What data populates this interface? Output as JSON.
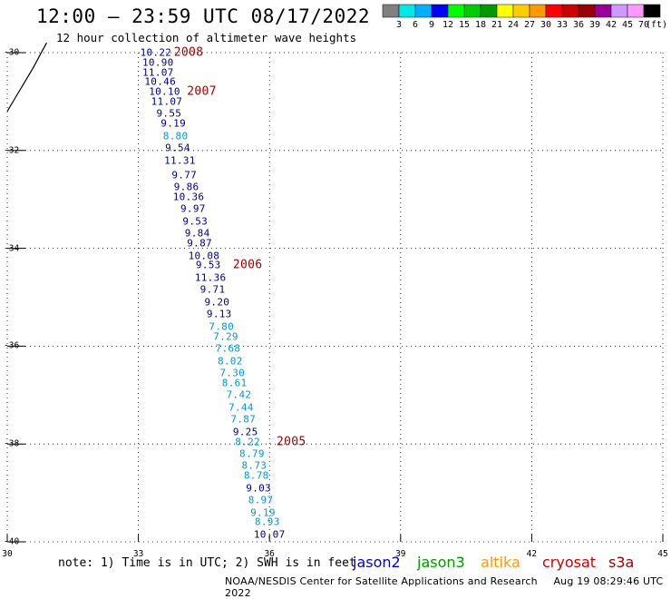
{
  "title": "12:00 – 23:59 UTC 08/17/2022",
  "subtitle": "12 hour collection of altimeter wave heights",
  "colorbar": {
    "colors": [
      "#808080",
      "#00e8e8",
      "#00b0ff",
      "#0000ff",
      "#00ff00",
      "#00cc00",
      "#009900",
      "#ffff00",
      "#ffcc00",
      "#ff9900",
      "#ff0000",
      "#cc0000",
      "#990000",
      "#990099",
      "#cc99ff",
      "#ff99ff",
      "#000000"
    ],
    "labels": [
      "3",
      "6",
      "9",
      "12",
      "15",
      "18",
      "21",
      "24",
      "27",
      "30",
      "33",
      "36",
      "39",
      "42",
      "45",
      "70",
      "(ft)"
    ]
  },
  "axes": {
    "y_ticks": [
      "-30",
      "-32",
      "-34",
      "-36",
      "-38",
      "-40"
    ],
    "x_ticks": [
      "30",
      "33",
      "36",
      "39",
      "42",
      "45"
    ],
    "lat_range": [
      -40,
      -30
    ],
    "lon_range": [
      30,
      45
    ],
    "grid": "dotted"
  },
  "track_colors": {
    "dark": "#000080",
    "light": "#0099cc",
    "marker": "#990000"
  },
  "waves": [
    {
      "text": "10.22",
      "lon": 33.4,
      "lat": -30.0,
      "c": "dark"
    },
    {
      "text": "10.90",
      "lon": 33.45,
      "lat": -30.2,
      "c": "dark"
    },
    {
      "text": "11.07",
      "lon": 33.45,
      "lat": -30.4,
      "c": "dark"
    },
    {
      "text": "10.46",
      "lon": 33.5,
      "lat": -30.6,
      "c": "dark"
    },
    {
      "text": "10.10",
      "lon": 33.6,
      "lat": -30.8,
      "c": "dark"
    },
    {
      "text": "11.07",
      "lon": 33.65,
      "lat": -31.0,
      "c": "dark"
    },
    {
      "text": "9.55",
      "lon": 33.7,
      "lat": -31.25,
      "c": "dark"
    },
    {
      "text": "9.19",
      "lon": 33.8,
      "lat": -31.45,
      "c": "dark"
    },
    {
      "text": "8.80",
      "lon": 33.85,
      "lat": -31.7,
      "c": "light"
    },
    {
      "text": "9.54",
      "lon": 33.9,
      "lat": -31.95,
      "c": "dark"
    },
    {
      "text": "11.31",
      "lon": 33.95,
      "lat": -32.2,
      "c": "dark"
    },
    {
      "text": "9.77",
      "lon": 34.05,
      "lat": -32.5,
      "c": "dark"
    },
    {
      "text": "9.86",
      "lon": 34.1,
      "lat": -32.75,
      "c": "dark"
    },
    {
      "text": "10.36",
      "lon": 34.15,
      "lat": -32.95,
      "c": "dark"
    },
    {
      "text": "9.97",
      "lon": 34.25,
      "lat": -33.2,
      "c": "dark"
    },
    {
      "text": "9.53",
      "lon": 34.3,
      "lat": -33.45,
      "c": "dark"
    },
    {
      "text": "9.84",
      "lon": 34.35,
      "lat": -33.7,
      "c": "dark"
    },
    {
      "text": "9.87",
      "lon": 34.4,
      "lat": -33.9,
      "c": "dark"
    },
    {
      "text": "10.08",
      "lon": 34.5,
      "lat": -34.15,
      "c": "dark"
    },
    {
      "text": "9.53",
      "lon": 34.6,
      "lat": -34.35,
      "c": "dark"
    },
    {
      "text": "11.36",
      "lon": 34.65,
      "lat": -34.6,
      "c": "dark"
    },
    {
      "text": "9.71",
      "lon": 34.7,
      "lat": -34.85,
      "c": "dark"
    },
    {
      "text": "9.20",
      "lon": 34.8,
      "lat": -35.1,
      "c": "dark"
    },
    {
      "text": "9.13",
      "lon": 34.85,
      "lat": -35.35,
      "c": "dark"
    },
    {
      "text": "7.80",
      "lon": 34.9,
      "lat": -35.6,
      "c": "light"
    },
    {
      "text": "7.29",
      "lon": 35.0,
      "lat": -35.8,
      "c": "light"
    },
    {
      "text": "7.68",
      "lon": 35.05,
      "lat": -36.05,
      "c": "light"
    },
    {
      "text": "8.02",
      "lon": 35.1,
      "lat": -36.3,
      "c": "light"
    },
    {
      "text": "7.30",
      "lon": 35.15,
      "lat": -36.55,
      "c": "light"
    },
    {
      "text": "8.61",
      "lon": 35.2,
      "lat": -36.75,
      "c": "light"
    },
    {
      "text": "7.42",
      "lon": 35.3,
      "lat": -37.0,
      "c": "light"
    },
    {
      "text": "7.44",
      "lon": 35.35,
      "lat": -37.25,
      "c": "light"
    },
    {
      "text": "7.87",
      "lon": 35.4,
      "lat": -37.5,
      "c": "light"
    },
    {
      "text": "9.25",
      "lon": 35.45,
      "lat": -37.75,
      "c": "dark"
    },
    {
      "text": "8.22",
      "lon": 35.5,
      "lat": -37.95,
      "c": "light"
    },
    {
      "text": "8.79",
      "lon": 35.6,
      "lat": -38.2,
      "c": "light"
    },
    {
      "text": "8.73",
      "lon": 35.65,
      "lat": -38.45,
      "c": "light"
    },
    {
      "text": "8.78",
      "lon": 35.7,
      "lat": -38.65,
      "c": "light"
    },
    {
      "text": "9.03",
      "lon": 35.75,
      "lat": -38.9,
      "c": "dark"
    },
    {
      "text": "8.97",
      "lon": 35.8,
      "lat": -39.15,
      "c": "light"
    },
    {
      "text": "9.19",
      "lon": 35.85,
      "lat": -39.4,
      "c": "light"
    },
    {
      "text": "8.93",
      "lon": 35.95,
      "lat": -39.6,
      "c": "light"
    },
    {
      "text": "10.07",
      "lon": 36.0,
      "lat": -39.85,
      "c": "dark"
    }
  ],
  "time_markers": [
    {
      "text": "2008",
      "lon": 34.15,
      "lat": -30.0
    },
    {
      "text": "2007",
      "lon": 34.45,
      "lat": -30.8
    },
    {
      "text": "2006",
      "lon": 35.5,
      "lat": -34.35
    },
    {
      "text": "2005",
      "lon": 36.5,
      "lat": -37.95
    }
  ],
  "coastline": [
    [
      30.0,
      -31.2
    ],
    [
      30.2,
      -30.9
    ],
    [
      30.4,
      -30.6
    ],
    [
      30.6,
      -30.3
    ],
    [
      30.75,
      -30.05
    ],
    [
      30.9,
      -29.8
    ]
  ],
  "note": "note: 1) Time is in UTC; 2) SWH is in feet",
  "legend": [
    {
      "text": "jason2",
      "color": "#0000cc"
    },
    {
      "text": "jason3",
      "color": "#009900"
    },
    {
      "text": "altika",
      "color": "#ff9900"
    },
    {
      "text": "cryosat",
      "color": "#cc0000"
    },
    {
      "text": "s3a",
      "color": "#990000"
    }
  ],
  "footer": {
    "credit": "NOAA/NESDIS Center for Satellite Applications and Research",
    "timestamp": "Aug 19 08:29:46 UTC 2022"
  }
}
